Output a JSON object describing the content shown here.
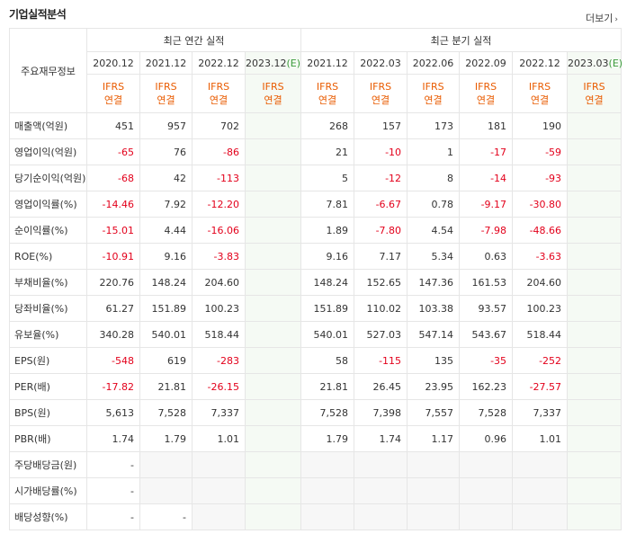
{
  "title": "기업실적분석",
  "more_label": "더보기",
  "header": {
    "corner": "주요재무정보",
    "annual": "최근 연간 실적",
    "quarter": "최근 분기 실적",
    "estimate_mark": "(E)"
  },
  "annual_periods": [
    "2020.12",
    "2021.12",
    "2022.12",
    "2023.12"
  ],
  "quarter_periods": [
    "2021.12",
    "2022.03",
    "2022.06",
    "2022.09",
    "2022.12",
    "2023.03"
  ],
  "ifrs": {
    "line1": "IFRS",
    "line2": "연결"
  },
  "colors": {
    "negative": "#e3001b",
    "ifrs": "#e95b00",
    "estimate": "#3b9b3b"
  },
  "rows": [
    {
      "label": "매출액(억원)",
      "values": [
        "451",
        "957",
        "702",
        "",
        "268",
        "157",
        "173",
        "181",
        "190",
        ""
      ]
    },
    {
      "label": "영업이익(억원)",
      "values": [
        "-65",
        "76",
        "-86",
        "",
        "21",
        "-10",
        "1",
        "-17",
        "-59",
        ""
      ]
    },
    {
      "label": "당기순이익(억원)",
      "values": [
        "-68",
        "42",
        "-113",
        "",
        "5",
        "-12",
        "8",
        "-14",
        "-93",
        ""
      ]
    },
    {
      "label": "영업이익률(%)",
      "values": [
        "-14.46",
        "7.92",
        "-12.20",
        "",
        "7.81",
        "-6.67",
        "0.78",
        "-9.17",
        "-30.80",
        ""
      ]
    },
    {
      "label": "순이익률(%)",
      "values": [
        "-15.01",
        "4.44",
        "-16.06",
        "",
        "1.89",
        "-7.80",
        "4.54",
        "-7.98",
        "-48.66",
        ""
      ]
    },
    {
      "label": "ROE(%)",
      "values": [
        "-10.91",
        "9.16",
        "-3.83",
        "",
        "9.16",
        "7.17",
        "5.34",
        "0.63",
        "-3.63",
        ""
      ]
    },
    {
      "label": "부채비율(%)",
      "values": [
        "220.76",
        "148.24",
        "204.60",
        "",
        "148.24",
        "152.65",
        "147.36",
        "161.53",
        "204.60",
        ""
      ]
    },
    {
      "label": "당좌비율(%)",
      "values": [
        "61.27",
        "151.89",
        "100.23",
        "",
        "151.89",
        "110.02",
        "103.38",
        "93.57",
        "100.23",
        ""
      ]
    },
    {
      "label": "유보율(%)",
      "values": [
        "340.28",
        "540.01",
        "518.44",
        "",
        "540.01",
        "527.03",
        "547.14",
        "543.67",
        "518.44",
        ""
      ]
    },
    {
      "label": "EPS(원)",
      "values": [
        "-548",
        "619",
        "-283",
        "",
        "58",
        "-115",
        "135",
        "-35",
        "-252",
        ""
      ]
    },
    {
      "label": "PER(배)",
      "values": [
        "-17.82",
        "21.81",
        "-26.15",
        "",
        "21.81",
        "26.45",
        "23.95",
        "162.23",
        "-27.57",
        ""
      ]
    },
    {
      "label": "BPS(원)",
      "values": [
        "5,613",
        "7,528",
        "7,337",
        "",
        "7,528",
        "7,398",
        "7,557",
        "7,528",
        "7,337",
        ""
      ]
    },
    {
      "label": "PBR(배)",
      "values": [
        "1.74",
        "1.79",
        "1.01",
        "",
        "1.79",
        "1.74",
        "1.17",
        "0.96",
        "1.01",
        ""
      ]
    },
    {
      "label": "주당배당금(원)",
      "values": [
        "-",
        "",
        "",
        "",
        "",
        "",
        "",
        "",
        "",
        ""
      ]
    },
    {
      "label": "시가배당률(%)",
      "values": [
        "-",
        "",
        "",
        "",
        "",
        "",
        "",
        "",
        "",
        ""
      ]
    },
    {
      "label": "배당성향(%)",
      "values": [
        "-",
        "-",
        "",
        "",
        "",
        "",
        "",
        "",
        "",
        ""
      ]
    }
  ]
}
